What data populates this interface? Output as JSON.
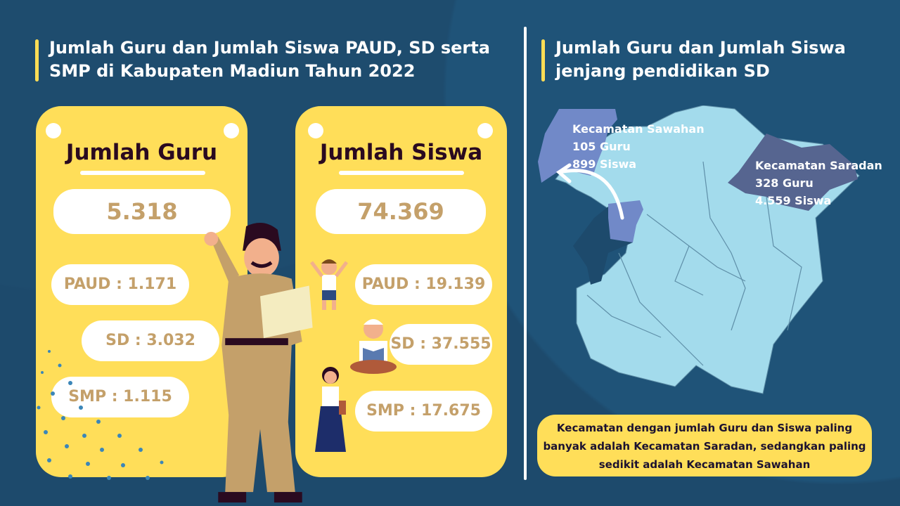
{
  "left": {
    "title": "Jumlah Guru dan Jumlah Siswa PAUD, SD serta SMP di Kabupaten Madiun Tahun 2022",
    "guru_card": {
      "heading": "Jumlah Guru",
      "total": "5.318",
      "paud": "PAUD : 1.171",
      "sd": "SD : 3.032",
      "smp": "SMP : 1.115"
    },
    "siswa_card": {
      "heading": "Jumlah Siswa",
      "total": "74.369",
      "paud": "PAUD : 19.139",
      "sd": "SD : 37.555",
      "smp": "SMP : 17.675"
    }
  },
  "right": {
    "title": "Jumlah Guru dan Jumlah Siswa jenjang pendidikan SD",
    "sawahan": {
      "name": "Kecamatan Sawahan",
      "guru": "105 Guru",
      "siswa": "899 Siswa"
    },
    "saradan": {
      "name": "Kecamatan Saradan",
      "guru": "328 Guru",
      "siswa": "4.559 Siswa"
    },
    "note": "Kecamatan dengan jumlah Guru dan Siswa paling banyak adalah Kecamatan Saradan, sedangkan paling sedikit adalah Kecamatan Sawahan"
  },
  "colors": {
    "background": "#1d4a6c",
    "card": "#ffde59",
    "number": "#c4a06a",
    "map": "#a3dbec",
    "sawahan": "#7189c8",
    "saradan": "#566590"
  },
  "icons": [
    "teacher-illustration",
    "student-boy-illustration",
    "student-reading-illustration",
    "student-girl-illustration",
    "curved-arrow-icon"
  ]
}
